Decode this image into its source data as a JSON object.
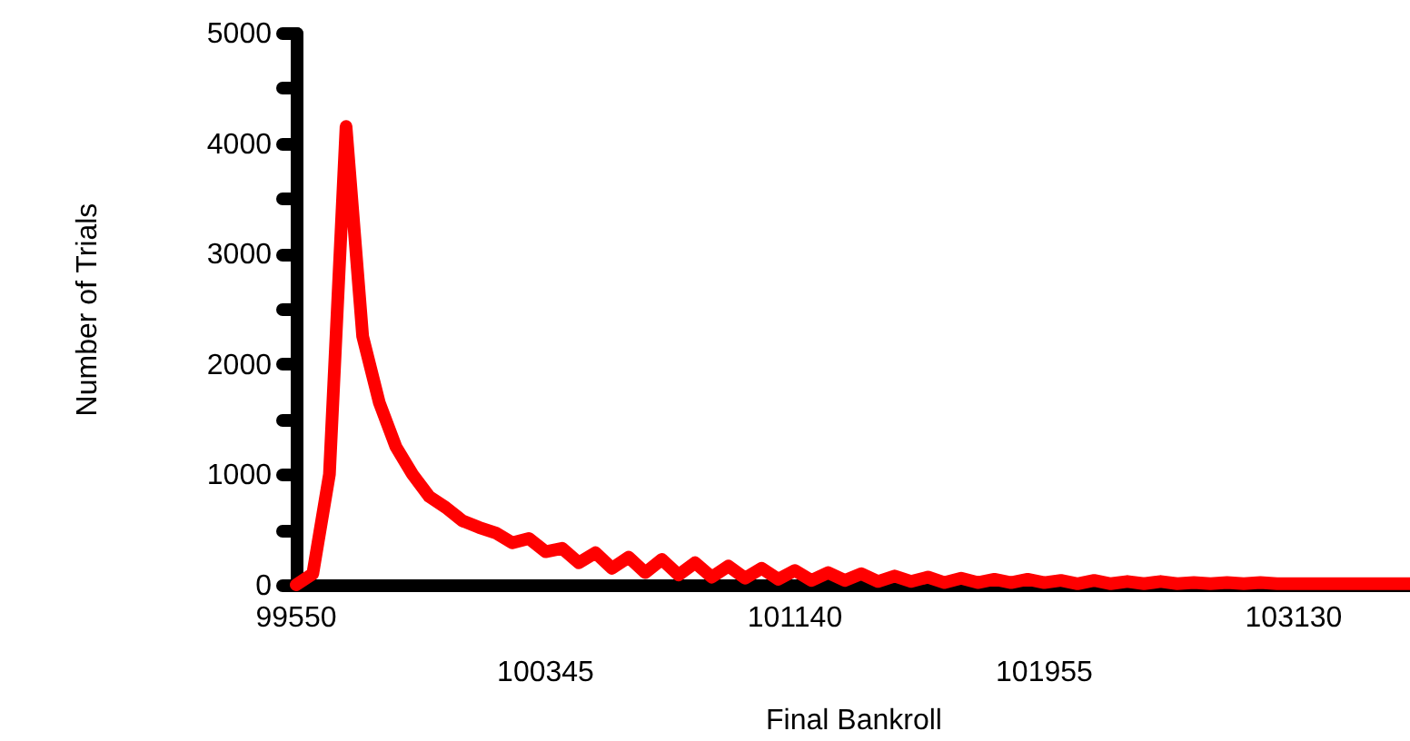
{
  "chart_data": {
    "type": "line",
    "xlabel": "Final Bankroll",
    "ylabel": "Number of Trials",
    "categories": [
      "99550",
      null,
      null,
      null,
      null,
      null,
      null,
      null,
      null,
      null,
      null,
      null,
      null,
      null,
      null,
      "100345",
      null,
      null,
      null,
      null,
      null,
      null,
      null,
      null,
      null,
      null,
      null,
      null,
      null,
      null,
      "101140",
      null,
      null,
      null,
      null,
      null,
      null,
      null,
      null,
      null,
      null,
      null,
      null,
      null,
      null,
      "101955",
      null,
      null,
      null,
      null,
      null,
      null,
      null,
      null,
      null,
      null,
      null,
      null,
      null,
      null,
      "103130",
      null,
      null,
      null,
      null,
      null,
      null,
      null
    ],
    "series": [
      {
        "color": "#ff0000",
        "values": [
          0,
          100,
          1000,
          4150,
          2250,
          1650,
          1250,
          1000,
          800,
          700,
          580,
          520,
          470,
          380,
          420,
          300,
          330,
          200,
          290,
          150,
          250,
          110,
          230,
          90,
          200,
          70,
          170,
          60,
          150,
          50,
          130,
          40,
          110,
          40,
          100,
          30,
          80,
          30,
          70,
          20,
          60,
          20,
          50,
          20,
          50,
          20,
          40,
          10,
          40,
          10,
          30,
          10,
          30,
          10,
          20,
          10,
          20,
          10,
          20,
          10,
          10,
          10,
          10,
          10,
          10,
          10,
          10,
          10
        ]
      }
    ],
    "ylim": [
      0,
      5000
    ],
    "yticks": [
      0,
      {
        "value": 500,
        "label": null
      },
      1000,
      {
        "value": 1500,
        "label": null
      },
      2000,
      {
        "value": 2500,
        "label": null
      },
      3000,
      {
        "value": 3500,
        "label": null
      },
      4000,
      {
        "value": 4500,
        "label": null
      },
      5000
    ],
    "grid": false,
    "line_style": "solid"
  }
}
